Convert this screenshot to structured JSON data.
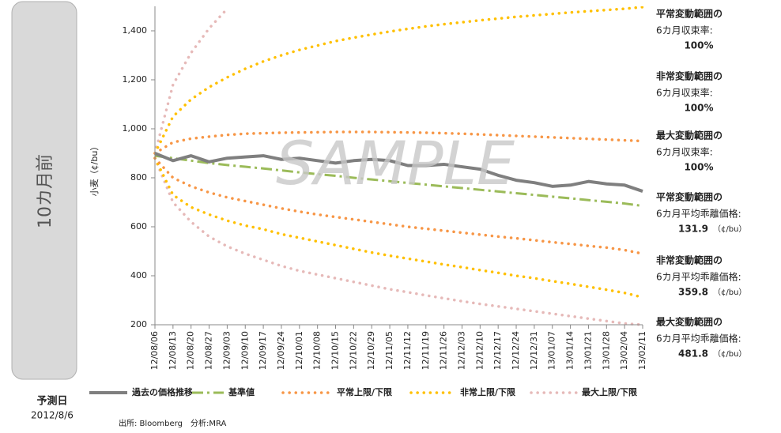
{
  "chart_data": {
    "type": "line",
    "side_label": "10カ月前",
    "forecast_label": "予測日",
    "forecast_date": "2012/8/6",
    "ylabel": "小麦（¢/bu）",
    "watermark": "SAMPLE",
    "source": "出所: Bloomberg　分析:MRA",
    "ylim": [
      200,
      1500
    ],
    "yticks": [
      200,
      400,
      600,
      800,
      {
        "value": 1000,
        "label": "1,000"
      },
      {
        "value": 1200,
        "label": "1,200"
      },
      {
        "value": 1400,
        "label": "1,400"
      }
    ],
    "categories": [
      "12/08/06",
      "12/08/13",
      "12/08/20",
      "12/08/27",
      "12/09/03",
      "12/09/10",
      "12/09/17",
      "12/09/24",
      "12/10/01",
      "12/10/08",
      "12/10/15",
      "12/10/22",
      "12/10/29",
      "12/11/05",
      "12/11/12",
      "12/11/19",
      "12/11/26",
      "12/12/03",
      "12/12/10",
      "12/12/17",
      "12/12/24",
      "12/12/31",
      "13/01/07",
      "13/01/14",
      "13/01/21",
      "13/01/28",
      "13/02/04",
      "13/02/11"
    ],
    "series": [
      {
        "name": "過去の価格推移",
        "color": "#7f7f7f",
        "style": "solid",
        "values": [
          900,
          870,
          890,
          865,
          880,
          885,
          890,
          875,
          880,
          870,
          860,
          870,
          875,
          870,
          850,
          850,
          855,
          845,
          835,
          810,
          790,
          780,
          765,
          770,
          785,
          775,
          770,
          745
        ]
      },
      {
        "name": "基準値",
        "color": "#9bbb59",
        "style": "dashdot",
        "values": [
          890,
          880,
          870,
          860,
          852,
          845,
          838,
          830,
          822,
          815,
          808,
          800,
          793,
          786,
          779,
          772,
          765,
          758,
          751,
          744,
          737,
          730,
          723,
          716,
          709,
          702,
          695,
          685
        ]
      },
      {
        "name": "平常上限/下限",
        "color": "#f79646",
        "style": "dotted",
        "values": [
          900,
          945,
          960,
          968,
          975,
          980,
          982,
          984,
          985,
          986,
          987,
          987,
          987,
          986,
          985,
          984,
          982,
          980,
          977,
          974,
          971,
          968,
          965,
          962,
          959,
          956,
          953,
          950
        ],
        "lower_values": [
          880,
          800,
          765,
          740,
          720,
          705,
          690,
          675,
          662,
          650,
          640,
          630,
          620,
          610,
          600,
          592,
          584,
          576,
          568,
          560,
          553,
          545,
          537,
          530,
          522,
          515,
          505,
          490
        ]
      },
      {
        "name": "非常上限/下限",
        "color": "#ffc000",
        "style": "dotted",
        "values": [
          900,
          1050,
          1120,
          1170,
          1210,
          1245,
          1275,
          1300,
          1322,
          1340,
          1358,
          1372,
          1385,
          1397,
          1408,
          1418,
          1427,
          1435,
          1443,
          1450,
          1457,
          1463,
          1469,
          1475,
          1480,
          1485,
          1490,
          1497
        ],
        "lower_values": [
          880,
          730,
          680,
          650,
          625,
          605,
          590,
          570,
          555,
          540,
          525,
          510,
          495,
          482,
          470,
          458,
          446,
          435,
          423,
          412,
          400,
          390,
          378,
          367,
          355,
          343,
          330,
          312
        ]
      },
      {
        "name": "最大上限/下限",
        "color": "#e6b9b8",
        "style": "dotted",
        "values": [
          900,
          1180,
          1310,
          1410,
          1490,
          null,
          null,
          null,
          null,
          null,
          null,
          null,
          null,
          null,
          null,
          null,
          null,
          null,
          null,
          null,
          null,
          null,
          null,
          null,
          null,
          null,
          null,
          null
        ],
        "lower_values": [
          880,
          700,
          620,
          560,
          520,
          490,
          465,
          440,
          420,
          405,
          390,
          375,
          360,
          345,
          333,
          320,
          308,
          296,
          285,
          275,
          265,
          255,
          245,
          235,
          225,
          215,
          205,
          200
        ]
      }
    ],
    "annotations": [
      {
        "title": "平常変動範囲の",
        "label": "6カ月収束率:",
        "value": "100%"
      },
      {
        "title": "非常変動範囲の",
        "label": "6カ月収束率:",
        "value": "100%"
      },
      {
        "title": "最大変動範囲の",
        "label": "6カ月収束率:",
        "value": "100%"
      },
      {
        "title": "平常変動範囲の",
        "label": "6カ月平均乖離価格:",
        "value": "131.9",
        "unit": "（¢/bu）"
      },
      {
        "title": "非常変動範囲の",
        "label": "6カ月平均乖離価格:",
        "value": "359.8",
        "unit": "（¢/bu）"
      },
      {
        "title": "最大変動範囲の",
        "label": "6カ月平均乖離価格:",
        "value": "481.8",
        "unit": "（¢/bu）"
      }
    ]
  }
}
